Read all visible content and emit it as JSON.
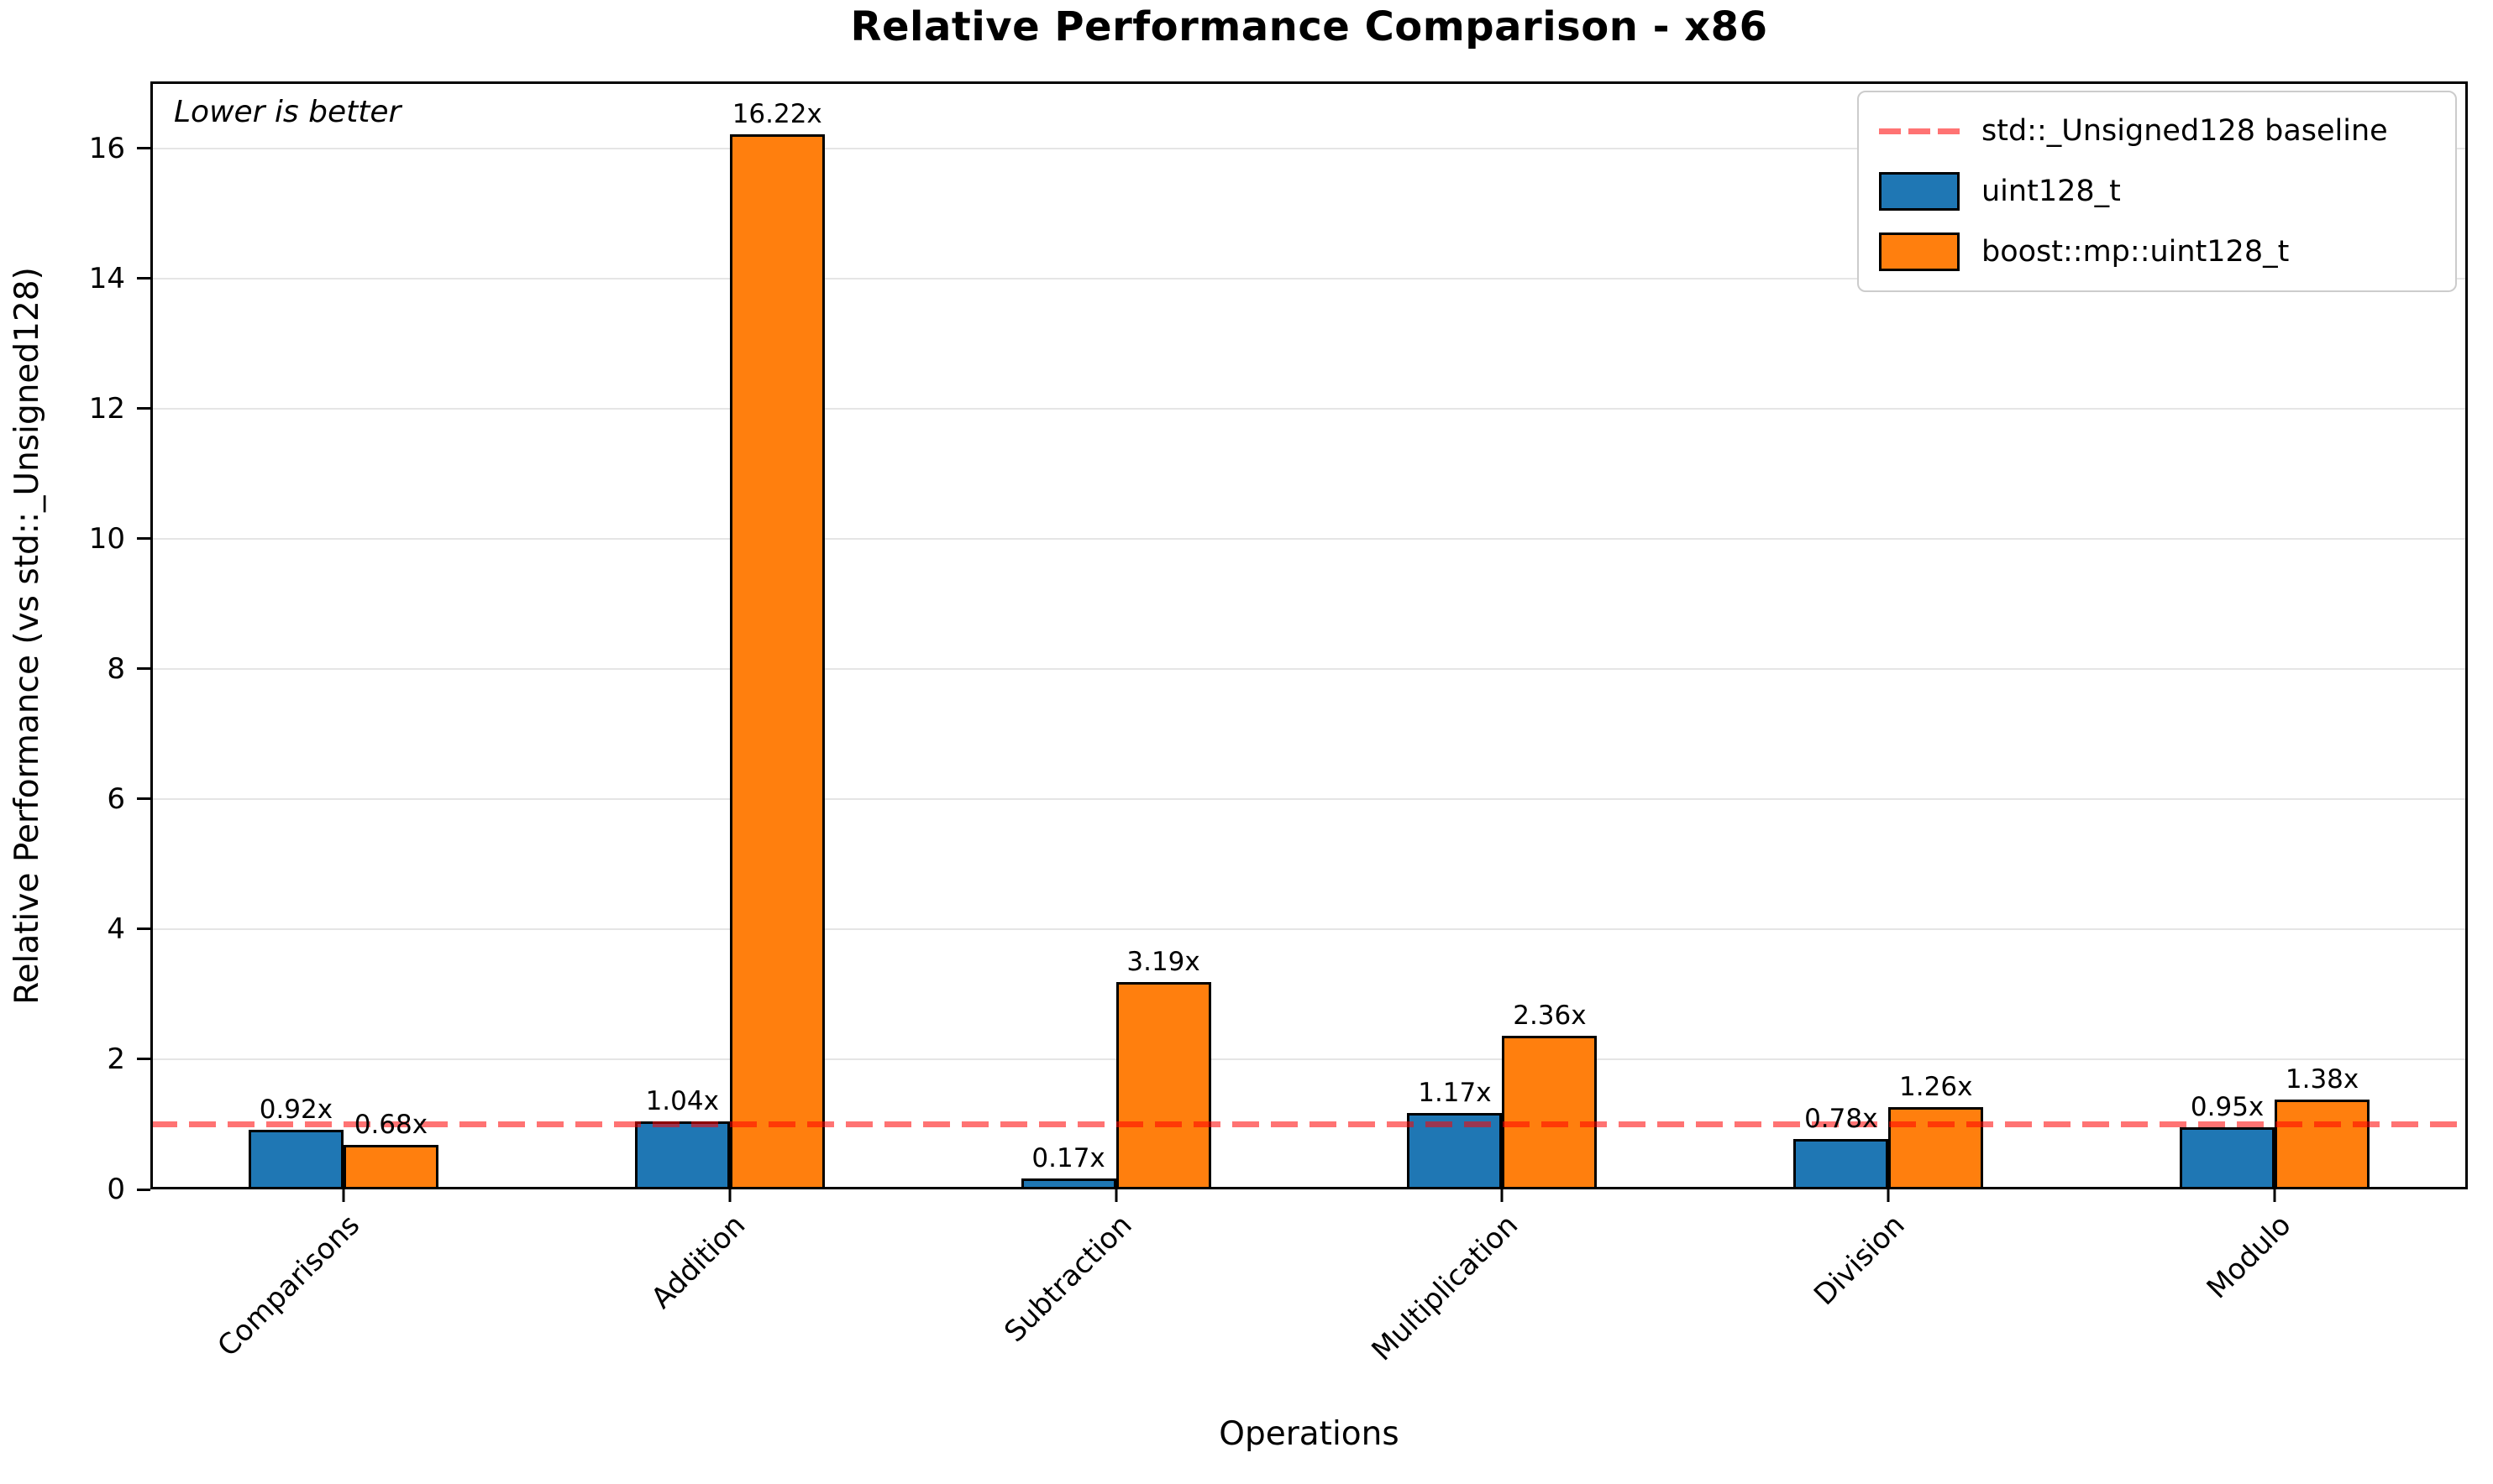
{
  "title": "Relative Performance Comparison - x86",
  "annotation": "Lower is better",
  "xlabel": "Operations",
  "ylabel": "Relative Performance (vs std::_Unsigned128)",
  "chart_data": {
    "type": "bar",
    "categories": [
      "Comparisons",
      "Addition",
      "Subtraction",
      "Multiplication",
      "Division",
      "Modulo"
    ],
    "series": [
      {
        "name": "uint128_t",
        "color": "#1f77b4",
        "values": [
          0.92,
          1.04,
          0.17,
          1.17,
          0.78,
          0.95
        ]
      },
      {
        "name": "boost::mp::uint128_t",
        "color": "#ff7f0e",
        "values": [
          0.68,
          16.22,
          3.19,
          2.36,
          1.26,
          1.38
        ]
      }
    ],
    "value_labels": [
      "0.92x",
      "0.68x",
      "1.04x",
      "16.22x",
      "0.17x",
      "3.19x",
      "1.17x",
      "2.36x",
      "0.78x",
      "1.26x",
      "0.95x",
      "1.38x"
    ],
    "value_label_suffix": "x",
    "baseline": {
      "label": "std::_Unsigned128 baseline",
      "value": 1.0,
      "color_rgba": "255,0,0,0.55"
    },
    "yticks": [
      0,
      2,
      4,
      6,
      8,
      10,
      12,
      14,
      16
    ],
    "ylim": [
      0,
      17.03
    ],
    "grid": true,
    "grid_color": "#e5e5e5",
    "legend_position": "upper right",
    "bar_edge_color": "#000000"
  }
}
